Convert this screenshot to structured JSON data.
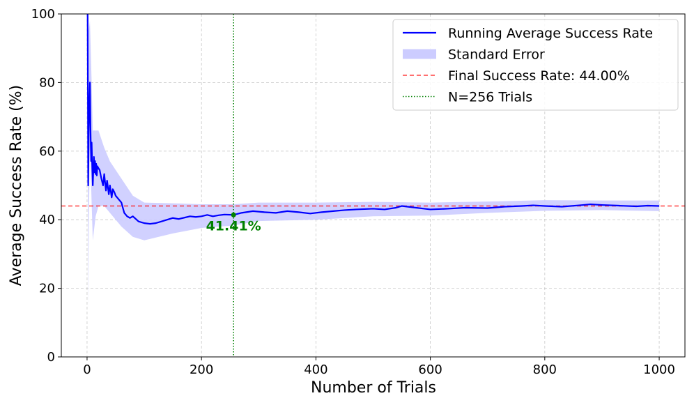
{
  "chart_data": {
    "type": "line",
    "title": "",
    "xlabel": "Number of Trials",
    "ylabel": "Average Success Rate (%)",
    "xlim": [
      -45,
      1045
    ],
    "ylim": [
      0,
      100
    ],
    "xticks": [
      0,
      200,
      400,
      600,
      800,
      1000
    ],
    "yticks": [
      0,
      20,
      40,
      60,
      80,
      100
    ],
    "xtick_labels": [
      "0",
      "200",
      "400",
      "600",
      "800",
      "1000"
    ],
    "ytick_labels": [
      "0",
      "20",
      "40",
      "60",
      "80",
      "100"
    ],
    "grid": true,
    "legend_position": "top-right",
    "series": [
      {
        "name": "Running Average Success Rate",
        "color": "#0000ff",
        "x": [
          1,
          2,
          3,
          4,
          5,
          6,
          7,
          8,
          9,
          10,
          11,
          12,
          13,
          14,
          15,
          16,
          17,
          18,
          20,
          22,
          25,
          28,
          30,
          33,
          35,
          38,
          40,
          43,
          45,
          48,
          50,
          55,
          60,
          65,
          70,
          75,
          80,
          90,
          100,
          110,
          120,
          130,
          140,
          150,
          160,
          170,
          180,
          190,
          200,
          210,
          220,
          230,
          240,
          256,
          270,
          290,
          310,
          330,
          350,
          370,
          390,
          410,
          430,
          450,
          470,
          500,
          520,
          540,
          550,
          570,
          600,
          630,
          660,
          700,
          730,
          760,
          780,
          800,
          830,
          860,
          880,
          900,
          930,
          960,
          980,
          1000
        ],
        "values": [
          100,
          50,
          66.7,
          75,
          80,
          66.7,
          57.1,
          62.5,
          55.6,
          50,
          54.5,
          58.3,
          53.8,
          57.1,
          53.3,
          56.3,
          52.9,
          55.6,
          55,
          54.5,
          52,
          50,
          53.3,
          48.5,
          51.4,
          47.4,
          50,
          46.5,
          48.9,
          47.9,
          47,
          46,
          45,
          42,
          41,
          40.5,
          41,
          39.5,
          39,
          38.8,
          39,
          39.5,
          40,
          40.5,
          40.2,
          40.6,
          41,
          40.8,
          41,
          41.4,
          41,
          41.3,
          41.5,
          41.41,
          42,
          42.5,
          42.2,
          42,
          42.5,
          42.2,
          41.8,
          42.2,
          42.5,
          42.8,
          43,
          43.2,
          43,
          43.5,
          44,
          43.6,
          43,
          43.2,
          43.5,
          43.4,
          43.8,
          44,
          44.2,
          44,
          43.8,
          44.2,
          44.5,
          44.3,
          44.1,
          43.9,
          44.1,
          44.0
        ]
      },
      {
        "name": "Standard Error",
        "color": "#ccccff",
        "type": "band",
        "x": [
          1,
          2,
          3,
          5,
          8,
          10,
          15,
          20,
          30,
          40,
          60,
          80,
          100,
          150,
          200,
          256,
          300,
          400,
          500,
          600,
          700,
          800,
          900,
          1000
        ],
        "upper": [
          100,
          100,
          95,
          98,
          80,
          66,
          66,
          66,
          61,
          57,
          52,
          47,
          45,
          44.8,
          44.5,
          44.5,
          45,
          45,
          45.2,
          45,
          45.3,
          45.7,
          45.6,
          45.6
        ],
        "lower": [
          100,
          14,
          38,
          62,
          45,
          34,
          41,
          44,
          44,
          42,
          38,
          35,
          34,
          36,
          37.6,
          38.3,
          39.6,
          40,
          41,
          41.2,
          42,
          42.6,
          42.8,
          42.5
        ]
      }
    ],
    "reference_lines": [
      {
        "name": "Final Success Rate: 44.00%",
        "orientation": "horizontal",
        "value": 44.0,
        "color": "#ff0000",
        "style": "dashed"
      },
      {
        "name": "N=256 Trials",
        "orientation": "vertical",
        "value": 256,
        "color": "#008000",
        "style": "dotted"
      }
    ],
    "annotations": [
      {
        "text": "41.41%",
        "x": 256,
        "y": 41.41,
        "color": "#008000"
      }
    ],
    "legend": [
      {
        "label": "Running Average Success Rate",
        "kind": "line",
        "color": "#0000ff"
      },
      {
        "label": "Standard Error",
        "kind": "patch",
        "color": "#ccccff"
      },
      {
        "label": "Final Success Rate: 44.00%",
        "kind": "dashed",
        "color": "#ff0000"
      },
      {
        "label": "N=256 Trials",
        "kind": "dotted",
        "color": "#008000"
      }
    ]
  }
}
